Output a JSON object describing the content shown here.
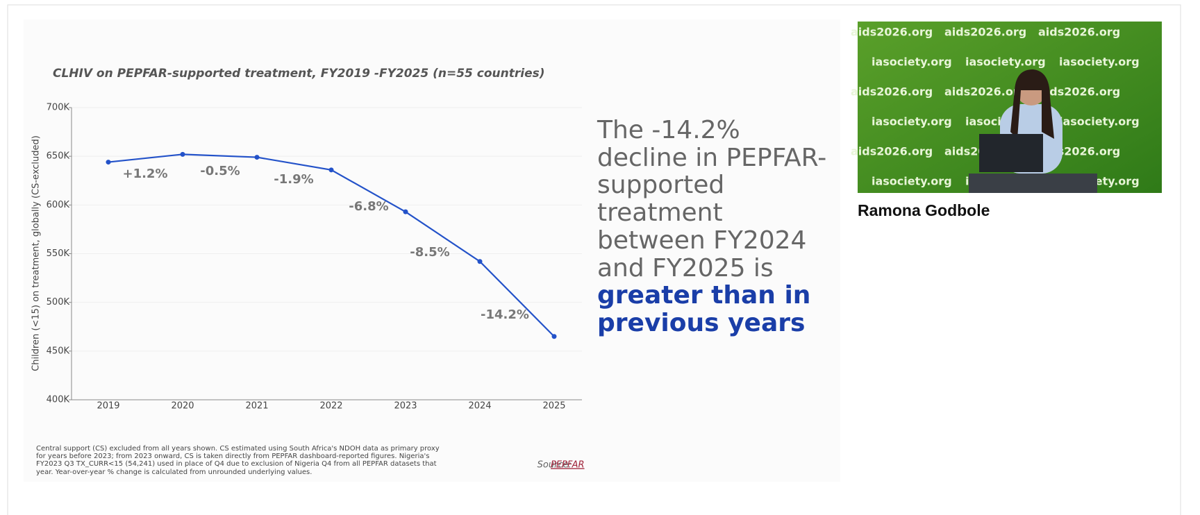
{
  "chart_data": {
    "type": "line",
    "title": "CLHIV on PEPFAR-supported treatment, FY2019 -FY2025 (n=55 countries)",
    "y_label": "Children (<15) on treatment, globally (CS-excluded)",
    "categories": [
      "2019",
      "2020",
      "2021",
      "2022",
      "2023",
      "2024",
      "2025"
    ],
    "series": [
      {
        "name": "CLHIV on PEPFAR-supported treatment",
        "color": "#2352c9",
        "values": [
          644000,
          652000,
          649000,
          636000,
          593000,
          542000,
          465000
        ]
      }
    ],
    "annotations": [
      "+1.2%",
      "-0.5%",
      "-1.9%",
      "-6.8%",
      "-8.5%",
      "-14.2%"
    ],
    "ylim": [
      400000,
      700000
    ],
    "yticks": [
      {
        "value": 400000,
        "label": "400K"
      },
      {
        "value": 450000,
        "label": "450K"
      },
      {
        "value": 500000,
        "label": "500K"
      },
      {
        "value": 550000,
        "label": "550K"
      },
      {
        "value": 600000,
        "label": "600K"
      },
      {
        "value": 650000,
        "label": "650K"
      },
      {
        "value": 700000,
        "label": "700K"
      }
    ],
    "grid": true,
    "footnote": "Central support (CS) excluded from all years shown. CS estimated using South Africa's NDOH data as primary proxy for years before 2023; from 2023 onward, CS is taken directly from PEPFAR dashboard-reported figures. Nigeria's FY2023 Q3 TX_CURR<15 (54,241) used in place of Q4 due to exclusion of Nigeria Q4 from all PEPFAR datasets that year. Year-over-year % change is calculated from unrounded underlying values.",
    "source_label": "Source:",
    "source": "PEPFAR"
  },
  "highlight": {
    "statement": "The -14.2% decline in PEPFAR-supported treatment between FY2024 and FY2025 is",
    "emphasis": "greater than in previous years"
  },
  "video": {
    "speaker": "Ramona Godbole",
    "backdrop_texts": [
      "aids2026.org",
      "iasociety.org"
    ]
  }
}
